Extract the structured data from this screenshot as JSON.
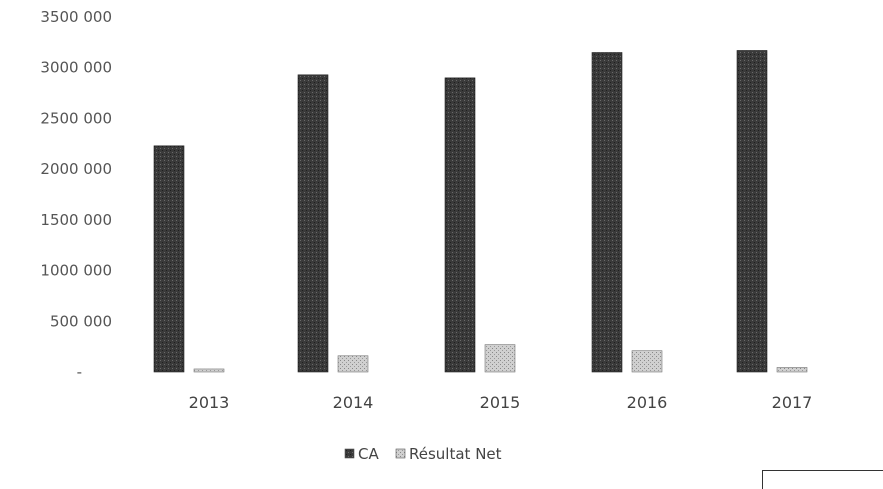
{
  "chart_data": {
    "type": "bar",
    "categories": [
      "2013",
      "2014",
      "2015",
      "2016",
      "2017"
    ],
    "series": [
      {
        "name": "CA",
        "values": [
          2230000,
          2930000,
          2900000,
          3150000,
          3170000
        ],
        "color": "#3a3a3a"
      },
      {
        "name": "Résultat Net",
        "values": [
          30000,
          160000,
          270000,
          210000,
          45000
        ],
        "color": "#bdbdbd"
      }
    ],
    "yticks": [
      "3500 000",
      "3000 000",
      "2500 000",
      "2000 000",
      "1500 000",
      "1000 000",
      "500 000",
      "-"
    ],
    "ylim": [
      0,
      3500000
    ],
    "grid": false,
    "legend_position": "bottom"
  }
}
